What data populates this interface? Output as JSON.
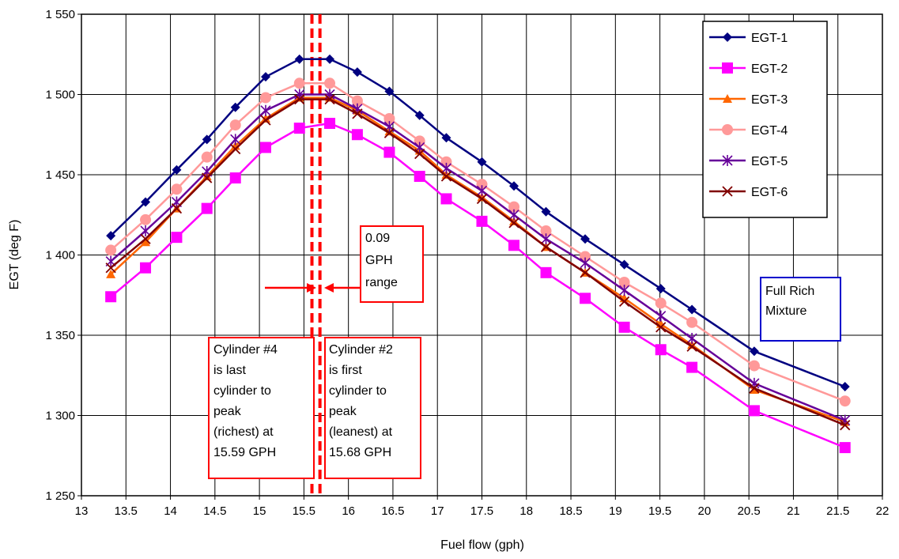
{
  "chart_data": {
    "type": "line",
    "xlabel": "Fuel flow (gph)",
    "ylabel": "EGT (deg F)",
    "xlim": [
      13,
      22
    ],
    "ylim": [
      1250,
      1550
    ],
    "x_ticks": [
      "13",
      "13.5",
      "14",
      "14.5",
      "15",
      "15.5",
      "16",
      "16.5",
      "17",
      "17.5",
      "18",
      "18.5",
      "19",
      "19.5",
      "20",
      "20.5",
      "21",
      "21.5",
      "22"
    ],
    "y_ticks": [
      "1 250",
      "1 300",
      "1 350",
      "1 400",
      "1 450",
      "1 500",
      "1 550"
    ],
    "grid": true,
    "legend_position": "top-right",
    "x": [
      13.33,
      13.72,
      14.07,
      14.41,
      14.73,
      15.07,
      15.45,
      15.79,
      16.1,
      16.46,
      16.8,
      17.1,
      17.5,
      17.86,
      18.22,
      18.66,
      19.1,
      19.51,
      19.86,
      20.56,
      21.58
    ],
    "series": [
      {
        "name": "EGT-1",
        "color": "#000080",
        "marker": "diamond",
        "values": [
          1412,
          1433,
          1453,
          1472,
          1492,
          1511,
          1522,
          1522,
          1514,
          1502,
          1487,
          1473,
          1458,
          1443,
          1427,
          1410,
          1394,
          1379,
          1366,
          1340,
          1318
        ]
      },
      {
        "name": "EGT-2",
        "color": "#ff00ff",
        "marker": "square",
        "values": [
          1374,
          1392,
          1411,
          1429,
          1448,
          1467,
          1479,
          1482,
          1475,
          1464,
          1449,
          1435,
          1421,
          1406,
          1389,
          1373,
          1355,
          1341,
          1330,
          1303,
          1280
        ]
      },
      {
        "name": "EGT-3",
        "color": "#ff6600",
        "marker": "triangle",
        "values": [
          1388,
          1408,
          1429,
          1449,
          1468,
          1485,
          1498,
          1498,
          1490,
          1477,
          1465,
          1450,
          1436,
          1421,
          1405,
          1389,
          1373,
          1357,
          1344,
          1316,
          1296
        ]
      },
      {
        "name": "EGT-4",
        "color": "#ff9999",
        "marker": "circle",
        "values": [
          1403,
          1422,
          1441,
          1461,
          1481,
          1498,
          1507,
          1507,
          1496,
          1485,
          1471,
          1458,
          1444,
          1430,
          1415,
          1399,
          1383,
          1370,
          1358,
          1331,
          1309
        ]
      },
      {
        "name": "EGT-5",
        "color": "#660099",
        "marker": "star",
        "values": [
          1396,
          1415,
          1433,
          1452,
          1472,
          1490,
          1500,
          1500,
          1491,
          1480,
          1467,
          1454,
          1440,
          1425,
          1410,
          1395,
          1378,
          1362,
          1348,
          1320,
          1297
        ]
      },
      {
        "name": "EGT-6",
        "color": "#800000",
        "marker": "x",
        "values": [
          1392,
          1410,
          1429,
          1448,
          1466,
          1484,
          1497,
          1497,
          1488,
          1476,
          1463,
          1449,
          1435,
          1420,
          1405,
          1389,
          1371,
          1355,
          1343,
          1317,
          1294
        ]
      }
    ],
    "reference_lines": [
      {
        "x": 15.59,
        "color": "#ff0000",
        "style": "dashed"
      },
      {
        "x": 15.68,
        "color": "#ff0000",
        "style": "dashed"
      }
    ],
    "annotations": {
      "range_box": {
        "lines": [
          "0.09",
          "GPH",
          "range"
        ],
        "border": "#ff0000"
      },
      "full_rich_box": {
        "lines": [
          "Full Rich",
          "Mixture"
        ],
        "border": "#0000cc"
      },
      "cyl4_box": {
        "lines": [
          "Cylinder #4",
          "is last",
          "cylinder to",
          "peak",
          "(richest) at",
          "15.59 GPH"
        ],
        "border": "#ff0000"
      },
      "cyl2_box": {
        "lines": [
          "Cylinder #2",
          "is first",
          "cylinder to",
          "peak",
          "(leanest) at",
          "15.68 GPH"
        ],
        "border": "#ff0000"
      }
    }
  }
}
